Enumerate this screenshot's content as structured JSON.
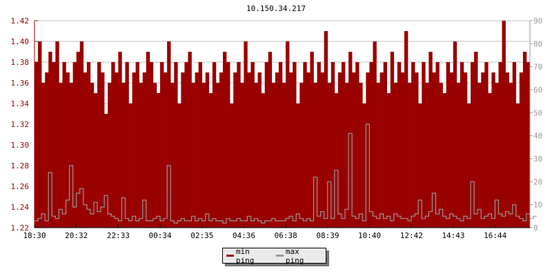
{
  "chart_data": {
    "type": "area",
    "title": "10.150.34.217",
    "x_tick_labels": [
      "18:30",
      "20:32",
      "22:33",
      "00:34",
      "02:35",
      "04:36",
      "06:38",
      "08:39",
      "10:40",
      "12:42",
      "14:43",
      "16:44"
    ],
    "left_axis": {
      "ylim": [
        1.22,
        1.42
      ],
      "ticks": [
        "1.22",
        "1.24",
        "1.26",
        "1.28",
        "1.30",
        "1.32",
        "1.34",
        "1.36",
        "1.38",
        "1.40",
        "1.42"
      ],
      "color": "#990000"
    },
    "right_axis": {
      "ylim": [
        0,
        90
      ],
      "ticks": [
        "0",
        "10",
        "20",
        "30",
        "40",
        "50",
        "60",
        "70",
        "80",
        "90"
      ],
      "color": "#999999"
    },
    "grid": true,
    "legend_placement": "bottom",
    "series": [
      {
        "name": "min ping",
        "color": "#990000",
        "axis": "left",
        "values": [
          1.38,
          1.4,
          1.36,
          1.37,
          1.39,
          1.38,
          1.4,
          1.36,
          1.38,
          1.37,
          1.36,
          1.38,
          1.39,
          1.4,
          1.37,
          1.38,
          1.36,
          1.35,
          1.38,
          1.37,
          1.33,
          1.36,
          1.38,
          1.37,
          1.39,
          1.36,
          1.38,
          1.34,
          1.37,
          1.38,
          1.36,
          1.37,
          1.39,
          1.38,
          1.36,
          1.35,
          1.38,
          1.37,
          1.4,
          1.36,
          1.38,
          1.34,
          1.37,
          1.38,
          1.39,
          1.36,
          1.37,
          1.38,
          1.36,
          1.37,
          1.35,
          1.38,
          1.36,
          1.37,
          1.39,
          1.38,
          1.34,
          1.37,
          1.38,
          1.36,
          1.4,
          1.37,
          1.38,
          1.36,
          1.37,
          1.35,
          1.38,
          1.39,
          1.36,
          1.37,
          1.38,
          1.36,
          1.4,
          1.37,
          1.38,
          1.34,
          1.36,
          1.38,
          1.37,
          1.39,
          1.36,
          1.38,
          1.37,
          1.41,
          1.36,
          1.38,
          1.35,
          1.37,
          1.38,
          1.36,
          1.39,
          1.37,
          1.38,
          1.36,
          1.34,
          1.37,
          1.38,
          1.4,
          1.36,
          1.37,
          1.38,
          1.35,
          1.39,
          1.36,
          1.38,
          1.37,
          1.41,
          1.36,
          1.38,
          1.37,
          1.34,
          1.38,
          1.36,
          1.39,
          1.37,
          1.38,
          1.36,
          1.35,
          1.38,
          1.37,
          1.4,
          1.36,
          1.38,
          1.37,
          1.34,
          1.38,
          1.39,
          1.36,
          1.37,
          1.38,
          1.35,
          1.37,
          1.36,
          1.38,
          1.42,
          1.37,
          1.36,
          1.38,
          1.34,
          1.37,
          1.39,
          1.38
        ]
      },
      {
        "name": "max ping",
        "color": "#999999",
        "axis": "right",
        "values": [
          3,
          4,
          6,
          3,
          24,
          5,
          4,
          8,
          6,
          12,
          27,
          9,
          15,
          17,
          10,
          8,
          6,
          11,
          7,
          9,
          14,
          6,
          5,
          4,
          3,
          13,
          4,
          3,
          5,
          3,
          4,
          12,
          3,
          3,
          4,
          5,
          3,
          4,
          27,
          3,
          2,
          3,
          4,
          3,
          3,
          5,
          3,
          4,
          3,
          6,
          3,
          4,
          3,
          3,
          2,
          4,
          3,
          3,
          4,
          3,
          3,
          5,
          3,
          4,
          3,
          2,
          3,
          3,
          4,
          3,
          3,
          3,
          4,
          5,
          3,
          6,
          4,
          3,
          4,
          3,
          22,
          5,
          7,
          4,
          20,
          4,
          25,
          6,
          4,
          8,
          41,
          5,
          4,
          6,
          3,
          45,
          7,
          5,
          4,
          6,
          4,
          5,
          3,
          6,
          5,
          4,
          4,
          3,
          5,
          6,
          12,
          4,
          5,
          7,
          15,
          6,
          8,
          5,
          4,
          6,
          5,
          4,
          3,
          5,
          4,
          20,
          6,
          8,
          4,
          5,
          6,
          4,
          12,
          6,
          5,
          7,
          6,
          10,
          5,
          4,
          3,
          6,
          4,
          5
        ]
      }
    ]
  },
  "legend": {
    "min_label": "min ping",
    "max_label": "max ping"
  }
}
